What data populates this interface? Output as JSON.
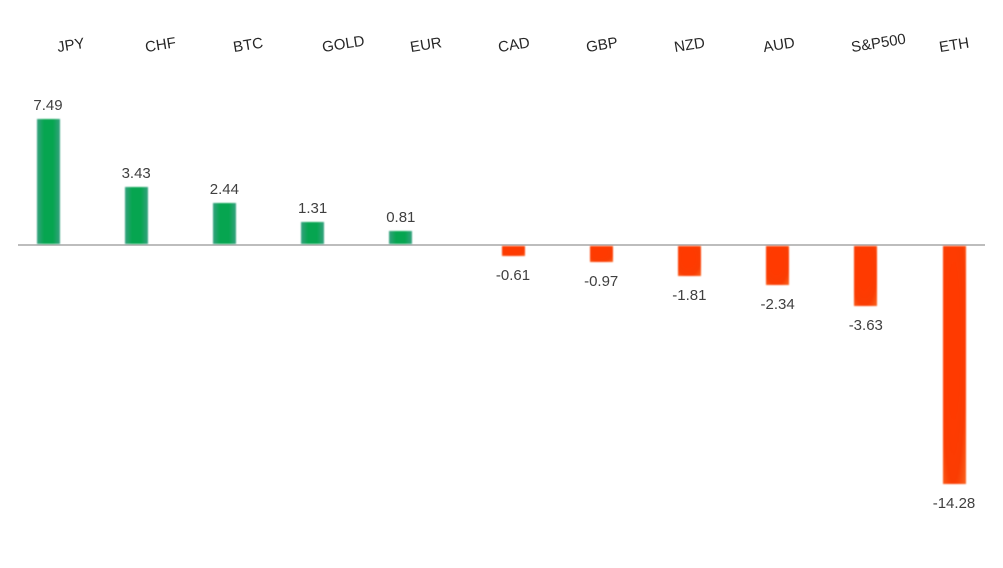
{
  "chart_data": {
    "type": "bar",
    "title": "",
    "xlabel": "",
    "ylabel": "",
    "categories": [
      "JPY",
      "CHF",
      "BTC",
      "GOLD",
      "EUR",
      "CAD",
      "GBP",
      "NZD",
      "AUD",
      "S&P500",
      "ETH"
    ],
    "values": [
      7.49,
      3.43,
      2.44,
      1.31,
      0.81,
      -0.61,
      -0.97,
      -1.81,
      -2.34,
      -3.63,
      -14.28
    ],
    "data_labels": [
      "7.49",
      "3.43",
      "2.44",
      "1.31",
      "0.81",
      "-0.61",
      "-0.97",
      "-1.81",
      "-2.34",
      "-3.63",
      "-14.28"
    ],
    "ylim": [
      -15,
      8
    ],
    "grid": false,
    "legend": false,
    "category_labels_position": "top",
    "category_labels_rotated": true,
    "positive_color": "#06a550",
    "negative_color": "#fa3c02",
    "axis_line_color": "#bdbdbd",
    "value_label_color": "#404040",
    "category_label_color": "#262626",
    "background_color": "#ffffff"
  }
}
